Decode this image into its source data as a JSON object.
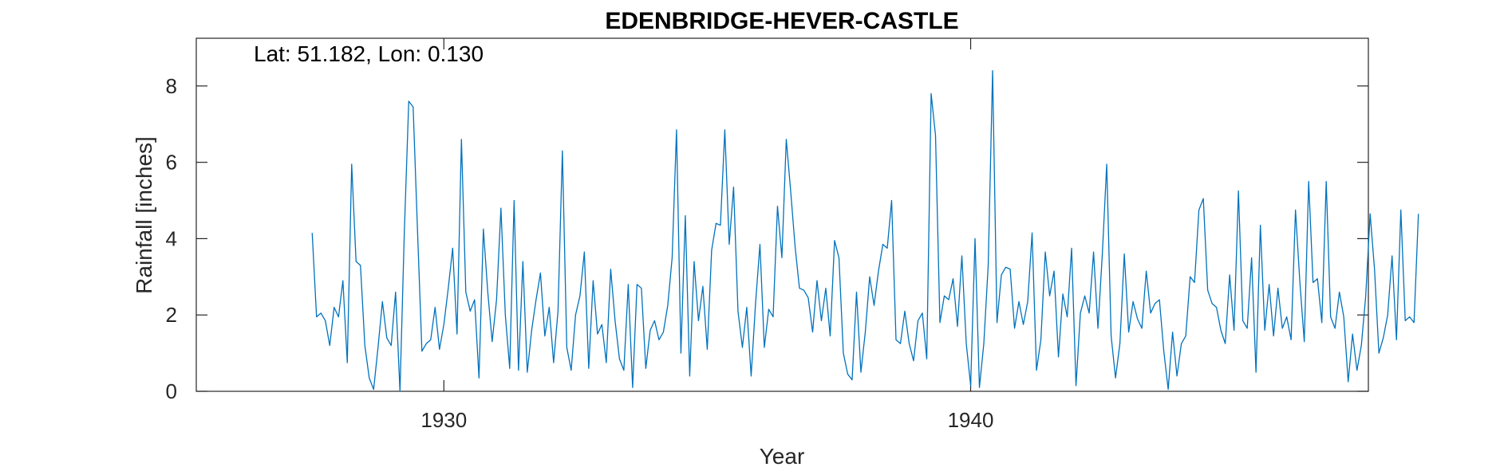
{
  "chart_data": {
    "type": "line",
    "title": "EDENBRIDGE-HEVER-CASTLE",
    "annotation": "Lat: 51.182, Lon: 0.130",
    "xlabel": "Year",
    "ylabel": "Rainfall [inches]",
    "xlim": [
      1925.3,
      1947.55
    ],
    "ylim": [
      0,
      9.25
    ],
    "xticks": [
      1930,
      1940
    ],
    "xtick_labels": [
      "1930",
      "1940"
    ],
    "yticks": [
      0,
      2,
      4,
      6,
      8
    ],
    "ytick_labels": [
      "0",
      "2",
      "4",
      "6",
      "8"
    ],
    "grid": false,
    "line_color": "#0072BD",
    "x_start": 1927.5,
    "x_step": 0.083333,
    "series": [
      {
        "values": [
          4.15,
          1.95,
          2.05,
          1.85,
          1.2,
          2.2,
          1.95,
          2.9,
          0.75,
          5.95,
          3.4,
          3.3,
          1.2,
          0.35,
          0.05,
          1.15,
          2.35,
          1.4,
          1.2,
          2.6,
          0.0,
          4.2,
          7.6,
          7.45,
          4.2,
          1.05,
          1.25,
          1.35,
          2.2,
          1.1,
          1.75,
          2.7,
          3.75,
          1.5,
          6.6,
          2.6,
          2.1,
          2.4,
          0.35,
          4.25,
          2.6,
          1.3,
          2.4,
          4.8,
          2.0,
          0.6,
          5.0,
          0.55,
          3.4,
          0.5,
          1.6,
          2.4,
          3.1,
          1.45,
          2.2,
          0.75,
          2.1,
          6.3,
          1.15,
          0.55,
          2.0,
          2.5,
          3.65,
          0.6,
          2.9,
          1.5,
          1.75,
          0.75,
          3.2,
          1.85,
          0.85,
          0.55,
          2.8,
          0.1,
          2.8,
          2.7,
          0.6,
          1.6,
          1.85,
          1.35,
          1.55,
          2.25,
          3.5,
          6.85,
          1.0,
          4.6,
          0.4,
          3.4,
          1.85,
          2.75,
          1.1,
          3.7,
          4.4,
          4.35,
          6.85,
          3.85,
          5.35,
          2.1,
          1.15,
          2.2,
          0.4,
          2.3,
          3.85,
          1.15,
          2.15,
          1.95,
          4.85,
          3.5,
          6.6,
          5.25,
          3.8,
          2.7,
          2.65,
          2.45,
          1.55,
          2.9,
          1.85,
          2.7,
          1.45,
          3.95,
          3.5,
          1.0,
          0.45,
          0.3,
          2.6,
          0.5,
          1.55,
          3.0,
          2.25,
          3.15,
          3.85,
          3.75,
          5.0,
          1.35,
          1.25,
          2.1,
          1.25,
          0.8,
          1.85,
          2.05,
          0.85,
          7.8,
          6.7,
          1.8,
          2.5,
          2.4,
          2.95,
          1.7,
          3.55,
          1.25,
          0.15,
          4.0,
          0.1,
          1.25,
          3.3,
          8.4,
          1.8,
          3.05,
          3.25,
          3.2,
          1.65,
          2.35,
          1.75,
          2.35,
          4.15,
          0.55,
          1.35,
          3.65,
          2.5,
          3.15,
          0.9,
          2.55,
          1.95,
          3.75,
          0.15,
          2.05,
          2.5,
          2.05,
          3.65,
          1.65,
          3.6,
          5.95,
          1.45,
          0.35,
          1.25,
          3.6,
          1.55,
          2.35,
          1.9,
          1.65,
          3.15,
          2.05,
          2.3,
          2.4,
          1.05,
          0.05,
          1.55,
          0.4,
          1.25,
          1.45,
          3.0,
          2.85,
          4.75,
          5.05,
          2.65,
          2.3,
          2.2,
          1.6,
          1.25,
          3.05,
          1.6,
          5.25,
          1.85,
          1.65,
          3.5,
          0.5,
          4.35,
          1.6,
          2.8,
          1.45,
          2.7,
          1.65,
          1.95,
          1.35,
          4.75,
          2.85,
          1.3,
          5.5,
          2.85,
          2.95,
          1.8,
          5.5,
          1.95,
          1.65,
          2.6,
          1.95,
          0.25,
          1.5,
          0.55,
          1.2,
          2.5,
          4.65,
          3.2,
          1.0,
          1.4,
          2.0,
          3.55,
          1.35,
          4.75,
          1.85,
          1.95,
          1.8,
          4.65
        ]
      }
    ]
  }
}
